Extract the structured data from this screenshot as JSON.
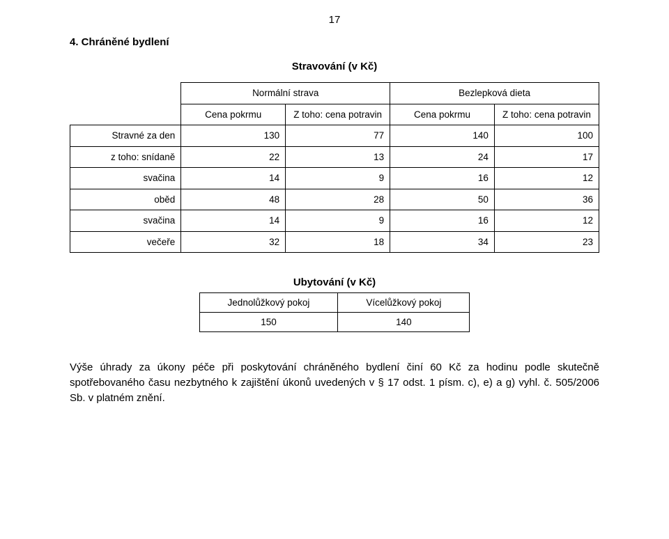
{
  "page_number": "17",
  "section_title": "4. Chráněné bydlení",
  "table1": {
    "title": "Stravování (v Kč)",
    "header_top_left": "Normální strava",
    "header_top_right": "Bezlepková dieta",
    "subheaders": [
      "Cena pokrmu",
      "Z toho: cena potravin",
      "Cena pokrmu",
      "Z toho: cena potravin"
    ],
    "rows": [
      {
        "label": "Stravné za den",
        "values": [
          "130",
          "77",
          "140",
          "100"
        ]
      },
      {
        "label": "z toho: snídaně",
        "values": [
          "22",
          "13",
          "24",
          "17"
        ]
      },
      {
        "label": "svačina",
        "values": [
          "14",
          "9",
          "16",
          "12"
        ]
      },
      {
        "label": "oběd",
        "values": [
          "48",
          "28",
          "50",
          "36"
        ]
      },
      {
        "label": "svačina",
        "values": [
          "14",
          "9",
          "16",
          "12"
        ]
      },
      {
        "label": "večeře",
        "values": [
          "32",
          "18",
          "34",
          "23"
        ]
      }
    ]
  },
  "table2": {
    "title": "Ubytování (v Kč)",
    "headers": [
      "Jednolůžkový pokoj",
      "Vícelůžkový pokoj"
    ],
    "values": [
      "150",
      "140"
    ]
  },
  "body_text": "Výše úhrady za úkony péče při poskytování chráněného bydlení činí 60 Kč za hodinu podle skutečně spotřebovaného času nezbytného k zajištění úkonů uvedených v § 17 odst. 1 písm. c), e) a g) vyhl. č. 505/2006 Sb. v platném znění."
}
